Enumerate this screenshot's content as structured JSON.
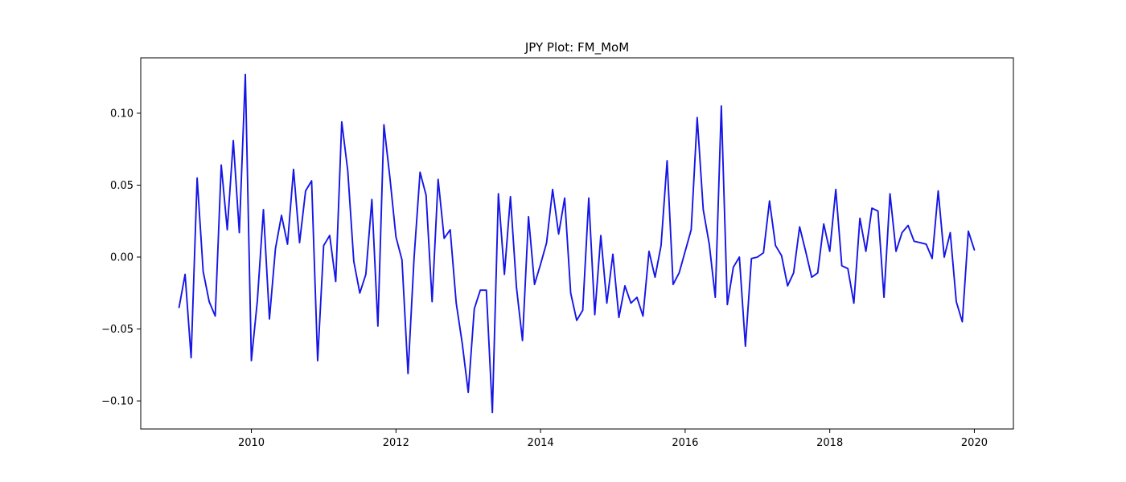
{
  "chart_data": {
    "type": "line",
    "title": "JPY Plot: FM_MoM",
    "xlabel": "",
    "ylabel": "",
    "xlim": [
      2008.47,
      2020.54
    ],
    "ylim": [
      -0.1195,
      0.1385
    ],
    "x_ticks": [
      2010,
      2012,
      2014,
      2016,
      2018,
      2020
    ],
    "x_tick_labels": [
      "2010",
      "2012",
      "2014",
      "2016",
      "2018",
      "2020"
    ],
    "y_ticks": [
      -0.1,
      -0.05,
      0.0,
      0.05,
      0.1
    ],
    "y_tick_labels": [
      "−0.10",
      "−0.05",
      "0.00",
      "0.05",
      "0.10"
    ],
    "grid": false,
    "legend": "none",
    "x_start": 2009.0,
    "x_step_months": 1,
    "series": [
      {
        "color": "#1515e8",
        "values": [
          -0.035,
          -0.012,
          -0.07,
          0.055,
          -0.01,
          -0.031,
          -0.041,
          0.064,
          0.019,
          0.081,
          0.017,
          0.127,
          -0.072,
          -0.03,
          0.033,
          -0.043,
          0.006,
          0.029,
          0.009,
          0.061,
          0.01,
          0.046,
          0.053,
          -0.072,
          0.008,
          0.015,
          -0.017,
          0.094,
          0.06,
          -0.003,
          -0.025,
          -0.012,
          0.04,
          -0.048,
          0.092,
          0.055,
          0.014,
          -0.002,
          -0.081,
          -0.001,
          0.059,
          0.043,
          -0.031,
          0.054,
          0.013,
          0.019,
          -0.032,
          -0.06,
          -0.094,
          -0.036,
          -0.023,
          -0.023,
          -0.108,
          0.044,
          -0.012,
          0.042,
          -0.021,
          -0.058,
          0.028,
          -0.019,
          -0.005,
          0.01,
          0.047,
          0.016,
          0.041,
          -0.025,
          -0.044,
          -0.037,
          0.041,
          -0.04,
          0.015,
          -0.032,
          0.002,
          -0.042,
          -0.02,
          -0.032,
          -0.028,
          -0.041,
          0.004,
          -0.014,
          0.008,
          0.067,
          -0.019,
          -0.011,
          0.004,
          0.019,
          0.097,
          0.033,
          0.009,
          -0.028,
          0.105,
          -0.033,
          -0.007,
          0.0,
          -0.062,
          -0.001,
          0.0,
          0.003,
          0.039,
          0.008,
          0.001,
          -0.02,
          -0.011,
          0.021,
          0.004,
          -0.014,
          -0.011,
          0.023,
          0.004,
          0.047,
          -0.006,
          -0.008,
          -0.032,
          0.027,
          0.004,
          0.034,
          0.032,
          -0.028,
          0.044,
          0.004,
          0.017,
          0.022,
          0.011,
          0.01,
          0.009,
          -0.001,
          0.046,
          0.0,
          0.017,
          -0.031,
          -0.045,
          0.018,
          0.005
        ]
      }
    ]
  }
}
